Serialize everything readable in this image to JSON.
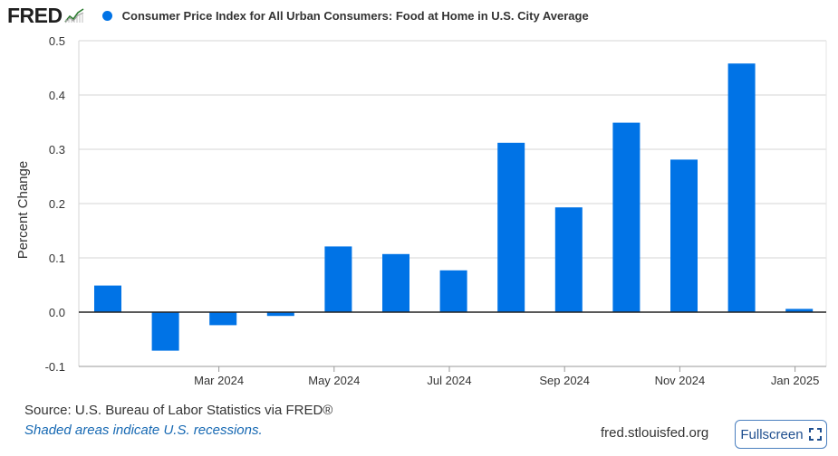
{
  "header": {
    "logo_text": "FRED",
    "legend_label": "Consumer Price Index for All Urban Consumers: Food at Home in U.S. City Average",
    "series_color": "#0073e6"
  },
  "chart_data": {
    "type": "bar",
    "ylabel": "Percent Change",
    "ylim": [
      -0.1,
      0.5
    ],
    "yticks": [
      -0.1,
      0.0,
      0.1,
      0.2,
      0.3,
      0.4,
      0.5
    ],
    "ytick_labels": [
      "-0.1",
      "0.0",
      "0.1",
      "0.2",
      "0.3",
      "0.4",
      "0.5"
    ],
    "categories": [
      "2024-02",
      "2024-03",
      "2024-04",
      "2024-05",
      "2024-06",
      "2024-07",
      "2024-08",
      "2024-09",
      "2024-10",
      "2024-11",
      "2024-12",
      "2025-01",
      "2025-02"
    ],
    "values": [
      0.049,
      -0.071,
      -0.024,
      -0.007,
      0.121,
      0.107,
      0.077,
      0.312,
      0.193,
      0.349,
      0.281,
      0.458,
      0.006
    ],
    "xtick_labels": [
      {
        "category": "2024-03",
        "label": "Mar 2024"
      },
      {
        "category": "2024-05",
        "label": "May 2024"
      },
      {
        "category": "2024-07",
        "label": "Jul 2024"
      },
      {
        "category": "2024-09",
        "label": "Sep 2024"
      },
      {
        "category": "2024-11",
        "label": "Nov 2024"
      },
      {
        "category": "2025-01",
        "label": "Jan 2025"
      }
    ],
    "grid": true,
    "bar_color": "#0073e6"
  },
  "footer": {
    "source": "Source: U.S. Bureau of Labor Statistics via FRED®",
    "recession_note": "Shaded areas indicate U.S. recessions.",
    "site": "fred.stlouisfed.org",
    "fullscreen_label": "Fullscreen"
  }
}
